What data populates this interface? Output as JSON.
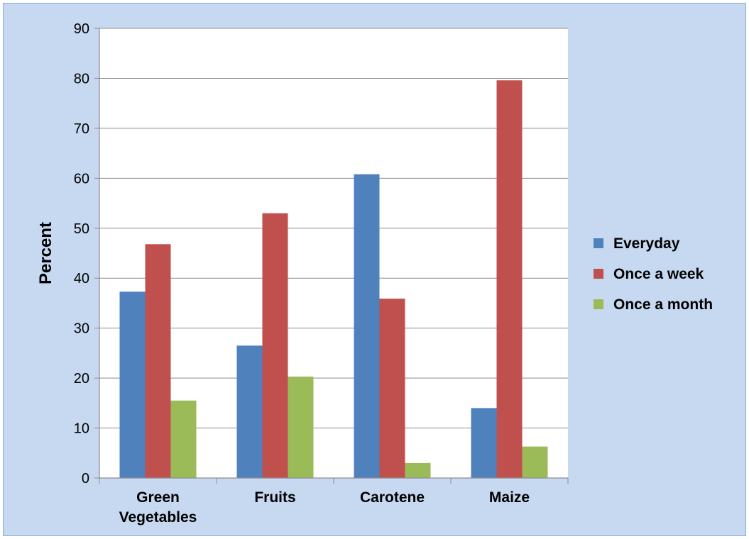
{
  "chart_data": {
    "type": "bar",
    "categories": [
      [
        "Green",
        "Vegetables"
      ],
      [
        "Fruits"
      ],
      [
        "Carotene"
      ],
      [
        "Maize"
      ]
    ],
    "series": [
      {
        "name": "Everyday",
        "color": "#4f81bd",
        "values": [
          37.3,
          26.5,
          60.8,
          14.0
        ]
      },
      {
        "name": "Once a week",
        "color": "#c0504d",
        "values": [
          46.8,
          53.0,
          35.9,
          79.6
        ]
      },
      {
        "name": "Once a month",
        "color": "#9bbb59",
        "values": [
          15.5,
          20.3,
          3.0,
          6.3
        ]
      }
    ],
    "ylabel": "Percent",
    "ylim": [
      0,
      90
    ],
    "yticks": [
      "0",
      "10",
      "20",
      "30",
      "40",
      "50",
      "60",
      "70",
      "80",
      "90"
    ],
    "grid": true,
    "legend_position": "right"
  }
}
